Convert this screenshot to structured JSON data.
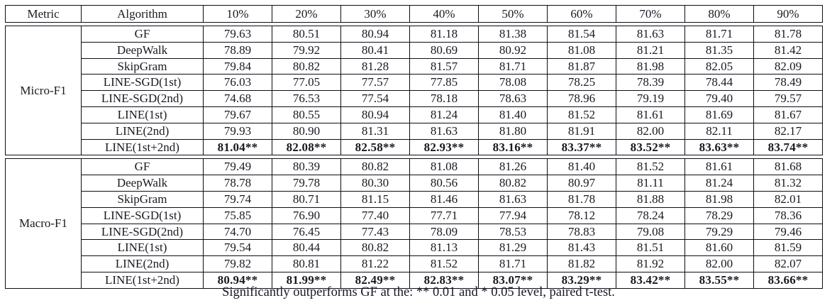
{
  "table": {
    "headers": [
      "Metric",
      "Algorithm",
      "10%",
      "20%",
      "30%",
      "40%",
      "50%",
      "60%",
      "70%",
      "80%",
      "90%"
    ],
    "sections": [
      {
        "metric": "Micro-F1",
        "rows": [
          {
            "algorithm": "GF",
            "bold": false,
            "values": [
              "79.63",
              "80.51",
              "80.94",
              "81.18",
              "81.38",
              "81.54",
              "81.63",
              "81.71",
              "81.78"
            ]
          },
          {
            "algorithm": "DeepWalk",
            "bold": false,
            "values": [
              "78.89",
              "79.92",
              "80.41",
              "80.69",
              "80.92",
              "81.08",
              "81.21",
              "81.35",
              "81.42"
            ]
          },
          {
            "algorithm": "SkipGram",
            "bold": false,
            "values": [
              "79.84",
              "80.82",
              "81.28",
              "81.57",
              "81.71",
              "81.87",
              "81.98",
              "82.05",
              "82.09"
            ]
          },
          {
            "algorithm": "LINE-SGD(1st)",
            "bold": false,
            "values": [
              "76.03",
              "77.05",
              "77.57",
              "77.85",
              "78.08",
              "78.25",
              "78.39",
              "78.44",
              "78.49"
            ]
          },
          {
            "algorithm": "LINE-SGD(2nd)",
            "bold": false,
            "values": [
              "74.68",
              "76.53",
              "77.54",
              "78.18",
              "78.63",
              "78.96",
              "79.19",
              "79.40",
              "79.57"
            ]
          },
          {
            "algorithm": "LINE(1st)",
            "bold": false,
            "values": [
              "79.67",
              "80.55",
              "80.94",
              "81.24",
              "81.40",
              "81.52",
              "81.61",
              "81.69",
              "81.67"
            ]
          },
          {
            "algorithm": "LINE(2nd)",
            "bold": false,
            "values": [
              "79.93",
              "80.90",
              "81.31",
              "81.63",
              "81.80",
              "81.91",
              "82.00",
              "82.11",
              "82.17"
            ]
          },
          {
            "algorithm": "LINE(1st+2nd)",
            "bold": true,
            "values": [
              "81.04**",
              "82.08**",
              "82.58**",
              "82.93**",
              "83.16**",
              "83.37**",
              "83.52**",
              "83.63**",
              "83.74**"
            ]
          }
        ]
      },
      {
        "metric": "Macro-F1",
        "rows": [
          {
            "algorithm": "GF",
            "bold": false,
            "values": [
              "79.49",
              "80.39",
              "80.82",
              "81.08",
              "81.26",
              "81.40",
              "81.52",
              "81.61",
              "81.68"
            ]
          },
          {
            "algorithm": "DeepWalk",
            "bold": false,
            "values": [
              "78.78",
              "79.78",
              "80.30",
              "80.56",
              "80.82",
              "80.97",
              "81.11",
              "81.24",
              "81.32"
            ]
          },
          {
            "algorithm": "SkipGram",
            "bold": false,
            "values": [
              "79.74",
              "80.71",
              "81.15",
              "81.46",
              "81.63",
              "81.78",
              "81.88",
              "81.98",
              "82.01"
            ]
          },
          {
            "algorithm": "LINE-SGD(1st)",
            "bold": false,
            "values": [
              "75.85",
              "76.90",
              "77.40",
              "77.71",
              "77.94",
              "78.12",
              "78.24",
              "78.29",
              "78.36"
            ]
          },
          {
            "algorithm": "LINE-SGD(2nd)",
            "bold": false,
            "values": [
              "74.70",
              "76.45",
              "77.43",
              "78.09",
              "78.53",
              "78.83",
              "79.08",
              "79.29",
              "79.46"
            ]
          },
          {
            "algorithm": "LINE(1st)",
            "bold": false,
            "values": [
              "79.54",
              "80.44",
              "80.82",
              "81.13",
              "81.29",
              "81.43",
              "81.51",
              "81.60",
              "81.59"
            ]
          },
          {
            "algorithm": "LINE(2nd)",
            "bold": false,
            "values": [
              "79.82",
              "80.81",
              "81.22",
              "81.52",
              "81.71",
              "81.82",
              "81.92",
              "82.00",
              "82.07"
            ]
          },
          {
            "algorithm": "LINE(1st+2nd)",
            "bold": true,
            "values": [
              "80.94**",
              "81.99**",
              "82.49**",
              "82.83**",
              "83.07**",
              "83.29**",
              "83.42**",
              "83.55**",
              "83.66**"
            ]
          }
        ]
      }
    ],
    "footnote": "Significantly outperforms GF at the: ** 0.01 and * 0.05 level, paired t-test."
  },
  "colors": {
    "background": "#ffffff",
    "text": "#191922",
    "border": "#0d0d14"
  }
}
